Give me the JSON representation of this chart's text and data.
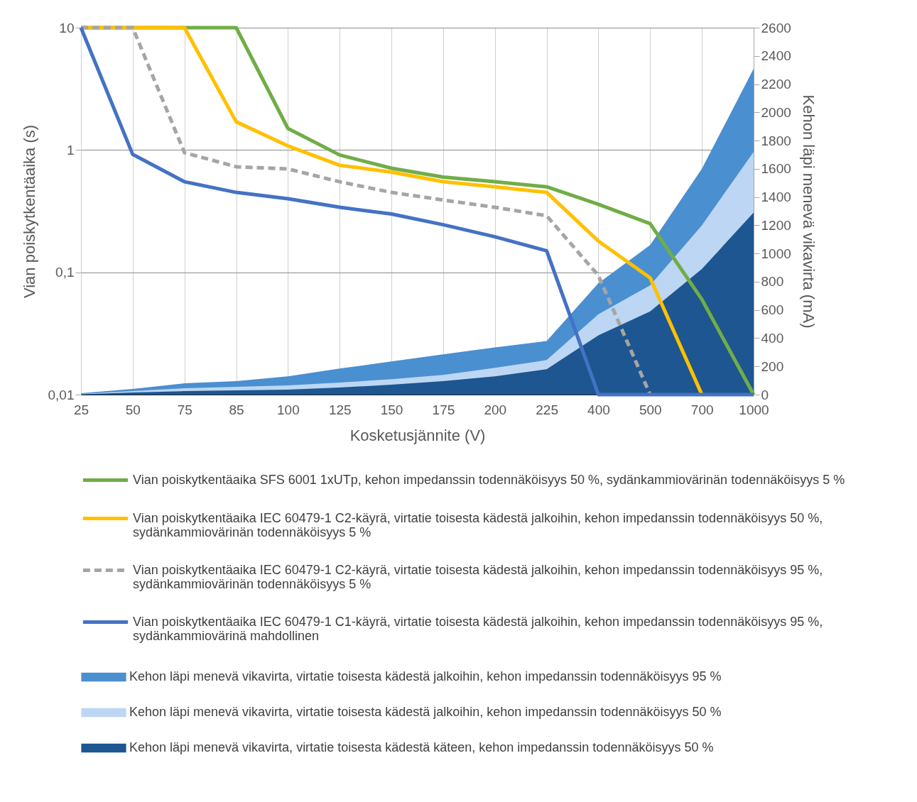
{
  "chart_data": {
    "type": "line",
    "xlabel": "Kosketusjännite (V)",
    "ylabel": "Vian poiskytkentäaika (s)",
    "y2label": "Kehon läpi menevä vikavirta (mA)",
    "categories": [
      "25",
      "50",
      "75",
      "85",
      "100",
      "125",
      "150",
      "175",
      "200",
      "225",
      "400",
      "500",
      "700",
      "1000"
    ],
    "log": "y",
    "ylim": [
      0.01,
      10
    ],
    "yticks": [
      {
        "value": 0.01,
        "label": "0,01"
      },
      {
        "value": 0.1,
        "label": "0,1"
      },
      1,
      10
    ],
    "y2lim": [
      0,
      2600
    ],
    "y2ticks": [
      0,
      200,
      400,
      600,
      800,
      1000,
      1200,
      1400,
      1600,
      1800,
      2000,
      2200,
      2400,
      2600
    ],
    "grid": true,
    "legend": "bottom",
    "series": [
      {
        "name": "Kehon läpi menevä vikavirta, virtatie toisesta kädestä jalkoihin, kehon impedanssin todennäköisyys 95 %",
        "type": "area",
        "axis": "y2",
        "color": "#4a8fd0",
        "values": [
          10,
          40,
          80,
          95,
          130,
          185,
          235,
          285,
          335,
          380,
          790,
          1060,
          1600,
          2310
        ]
      },
      {
        "name": "Kehon läpi menevä vikavirta, virtatie toisesta kädestä jalkoihin, kehon impedanssin todennäköisyys 50 %",
        "type": "area",
        "axis": "y2",
        "color": "#bcd6f3",
        "values": [
          5,
          25,
          45,
          55,
          65,
          85,
          110,
          140,
          190,
          245,
          570,
          775,
          1200,
          1720
        ]
      },
      {
        "name": "Kehon läpi menevä vikavirta, virtatie toisesta kädestä käteen, kehon impedanssin todennäköisyys 50 %",
        "type": "area",
        "axis": "y2",
        "color": "#1d5690",
        "values": [
          3,
          15,
          25,
          30,
          35,
          50,
          70,
          95,
          130,
          180,
          420,
          590,
          890,
          1290
        ]
      },
      {
        "name": "Vian poiskytkentäaika SFS 6001 1xUTp, kehon impedanssin todennäköisyys 50 %, sydänkammiovärinän todennäköisyys 5 %",
        "color": "#70ad47",
        "values": [
          10,
          10,
          10,
          10,
          1.5,
          0.91,
          0.71,
          0.6,
          0.55,
          0.5,
          0.36,
          0.25,
          0.06,
          0.01
        ]
      },
      {
        "name": "Vian poiskytkentäaika IEC 60479-1 C2-käyrä, virtatie toisesta kädestä jalkoihin, kehon impedanssin todennäköisyys 50 %, sydänkammiovärinän todennäköisyys 5 %",
        "color": "#ffc000",
        "values": [
          10,
          10,
          10,
          1.7,
          1.08,
          0.75,
          0.66,
          0.55,
          0.5,
          0.45,
          0.18,
          0.09,
          0.01,
          null
        ]
      },
      {
        "name": "Vian poiskytkentäaika IEC 60479-1 C2-käyrä, virtatie toisesta kädestä jalkoihin, kehon impedanssin todennäköisyys 95 %, sydänkammiovärinän todennäköisyys 5 %",
        "color": "#a5a5a5",
        "line_style": "dashed",
        "values": [
          10,
          10,
          0.95,
          0.73,
          0.7,
          0.55,
          0.45,
          0.39,
          0.34,
          0.29,
          0.094,
          0.01,
          null,
          null
        ]
      },
      {
        "name": "Vian poiskytkentäaika IEC 60479-1 C1-käyrä, virtatie toisesta kädestä jalkoihin, kehon impedanssin todennäköisyys 95 %, sydänkammiovärinä mahdollinen",
        "color": "#4472c4",
        "values": [
          10,
          0.92,
          0.55,
          0.45,
          0.4,
          0.34,
          0.3,
          0.245,
          0.195,
          0.15,
          0.01,
          0.01,
          0.01,
          0.01
        ]
      }
    ]
  }
}
